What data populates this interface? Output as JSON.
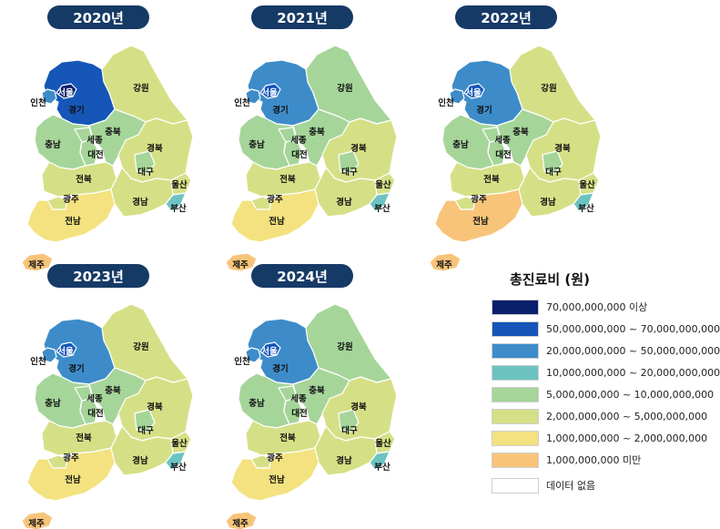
{
  "palette": {
    "c1": "#0a1f6b",
    "c2": "#1556b8",
    "c3": "#3d8cc9",
    "c4": "#6cc3c1",
    "c5": "#a6d59a",
    "c6": "#d5e086",
    "c7": "#f3e27f",
    "c8": "#f7c47a",
    "none": "#ffffff"
  },
  "legend": {
    "title": "총진료비 (원)",
    "items": [
      {
        "key": "c1",
        "label": "70,000,000,000 이상"
      },
      {
        "key": "c2",
        "label": "50,000,000,000 ~ 70,000,000,000"
      },
      {
        "key": "c3",
        "label": "20,000,000,000 ~ 50,000,000,000"
      },
      {
        "key": "c4",
        "label": "10,000,000,000 ~ 20,000,000,000"
      },
      {
        "key": "c5",
        "label": "5,000,000,000 ~ 10,000,000,000"
      },
      {
        "key": "c6",
        "label": "2,000,000,000 ~ 5,000,000,000"
      },
      {
        "key": "c7",
        "label": "1,000,000,000 ~ 2,000,000,000"
      },
      {
        "key": "c8",
        "label": "1,000,000,000 미만"
      },
      {
        "key": "none",
        "label": "데이터 없음"
      }
    ]
  },
  "region_names": {
    "seoul": "서울",
    "incheon": "인천",
    "gyeonggi": "경기",
    "gangwon": "강원",
    "chungbuk": "충북",
    "chungnam": "충남",
    "sejong": "세종",
    "daejeon": "대전",
    "gyeongbuk": "경북",
    "daegu": "대구",
    "jeonbuk": "전북",
    "gwangju": "광주",
    "jeonnam": "전남",
    "gyeongnam": "경남",
    "ulsan": "울산",
    "busan": "부산",
    "jeju": "제주"
  },
  "maps": [
    {
      "year": "2020년",
      "classes": {
        "seoul": "c1",
        "incheon": "c3",
        "gyeonggi": "c2",
        "gangwon": "c6",
        "chungbuk": "c5",
        "chungnam": "c5",
        "sejong": "c5",
        "daejeon": "c5",
        "gyeongbuk": "c6",
        "daegu": "c5",
        "jeonbuk": "c6",
        "gwangju": "c6",
        "jeonnam": "c7",
        "gyeongnam": "c6",
        "ulsan": "c6",
        "busan": "c4",
        "jeju": "c8"
      }
    },
    {
      "year": "2021년",
      "classes": {
        "seoul": "c2",
        "incheon": "c3",
        "gyeonggi": "c3",
        "gangwon": "c5",
        "chungbuk": "c5",
        "chungnam": "c5",
        "sejong": "c5",
        "daejeon": "c5",
        "gyeongbuk": "c6",
        "daegu": "c5",
        "jeonbuk": "c6",
        "gwangju": "c6",
        "jeonnam": "c7",
        "gyeongnam": "c6",
        "ulsan": "c6",
        "busan": "c4",
        "jeju": "c8"
      }
    },
    {
      "year": "2022년",
      "classes": {
        "seoul": "c2",
        "incheon": "c3",
        "gyeonggi": "c3",
        "gangwon": "c6",
        "chungbuk": "c5",
        "chungnam": "c5",
        "sejong": "c5",
        "daejeon": "c5",
        "gyeongbuk": "c6",
        "daegu": "c5",
        "jeonbuk": "c6",
        "gwangju": "c6",
        "jeonnam": "c8",
        "gyeongnam": "c6",
        "ulsan": "c6",
        "busan": "c4",
        "jeju": "c8"
      }
    },
    {
      "year": "2023년",
      "classes": {
        "seoul": "c2",
        "incheon": "c3",
        "gyeonggi": "c3",
        "gangwon": "c6",
        "chungbuk": "c5",
        "chungnam": "c5",
        "sejong": "c5",
        "daejeon": "c5",
        "gyeongbuk": "c6",
        "daegu": "c5",
        "jeonbuk": "c6",
        "gwangju": "c6",
        "jeonnam": "c7",
        "gyeongnam": "c6",
        "ulsan": "c6",
        "busan": "c4",
        "jeju": "c8"
      }
    },
    {
      "year": "2024년",
      "classes": {
        "seoul": "c2",
        "incheon": "c3",
        "gyeonggi": "c3",
        "gangwon": "c5",
        "chungbuk": "c5",
        "chungnam": "c5",
        "sejong": "c5",
        "daejeon": "c5",
        "gyeongbuk": "c6",
        "daegu": "c5",
        "jeonbuk": "c6",
        "gwangju": "c6",
        "jeonnam": "c7",
        "gyeongnam": "c6",
        "ulsan": "c6",
        "busan": "c4",
        "jeju": "c8"
      }
    }
  ]
}
